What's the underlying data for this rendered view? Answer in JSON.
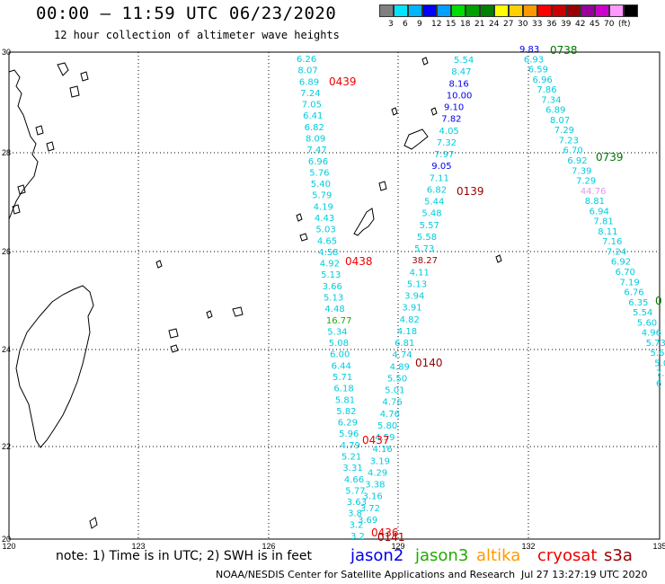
{
  "header": {
    "title": "00:00 – 11:59 UTC 06/23/2020",
    "subtitle": "12 hour collection of altimeter wave heights"
  },
  "colorbar": {
    "colors": [
      "#808080",
      "#00e5ff",
      "#00b4ff",
      "#0000ff",
      "#00a0ff",
      "#00dd00",
      "#00a000",
      "#008000",
      "#ffff00",
      "#ffd000",
      "#ff9900",
      "#ff0000",
      "#cc0000",
      "#990000",
      "#990099",
      "#cc00cc",
      "#ff99ff",
      "#000000"
    ],
    "labels": [
      "3",
      "6",
      "9",
      "12",
      "15",
      "18",
      "21",
      "24",
      "27",
      "30",
      "33",
      "36",
      "39",
      "42",
      "45",
      "70",
      "(ft)"
    ]
  },
  "map": {
    "lat_labels": [
      "30",
      "28",
      "26",
      "24",
      "22",
      "20"
    ],
    "lon_labels": [
      "120",
      "123",
      "126",
      "129",
      "132",
      "135"
    ]
  },
  "tracks": {
    "colors": {
      "cyan": "#00ccdd",
      "blue": "#0000ee",
      "green": "#22aa00",
      "red": "#ee0000",
      "darkred": "#990000",
      "darkgreen": "#007700",
      "pink": "#dd99ee"
    },
    "track_a": [
      "6.26",
      "8.07",
      "6.89",
      "7.24",
      "7.05",
      "6.41",
      "6.82",
      "8.09",
      "7.47",
      "6.96",
      "5.76",
      "5.40",
      "5.79",
      "4.19",
      "4.43",
      "5.03",
      "4.65",
      "4.58",
      "4.92",
      "5.13",
      "3.66",
      "5.13",
      "4.48",
      "16.77",
      "5.34",
      "5.08",
      "6.00",
      "6.44",
      "5.71",
      "6.18",
      "5.81",
      "5.82",
      "6.29",
      "5.96",
      "4.79",
      "5.21",
      "3.31",
      "4.66",
      "5.77",
      "3.63",
      "3.8",
      "3.2",
      "3.2"
    ],
    "track_b": [
      "5.54",
      "8.47",
      "8.16",
      "10.00",
      "9.10",
      "7.82",
      "4.05",
      "7.32",
      "7.97",
      "9.05",
      "7.11",
      "6.82",
      "5.44",
      "5.48",
      "5.57",
      "5.58",
      "5.73",
      "38.27",
      "4.11",
      "5.13",
      "3.94",
      "3.91",
      "4.82",
      "4.18",
      "6.81",
      "4.74",
      "4.89",
      "5.50",
      "5.01",
      "4.76",
      "4.76",
      "5.80",
      "4.59",
      "4.16",
      "3.19",
      "4.29",
      "3.38",
      "3.16",
      "3.72",
      "3.69"
    ],
    "track_c": [
      "9.83",
      "6.93",
      "6.59",
      "6.96",
      "7.86",
      "7.34",
      "6.89",
      "8.07",
      "7.29",
      "7.23",
      "6.70",
      "6.92",
      "7.39",
      "7.29",
      "44.76",
      "8.81",
      "6.94",
      "7.81",
      "8.11",
      "7.16",
      "7.24",
      "6.92",
      "6.70",
      "7.19",
      "6.76",
      "6.35",
      "5.54",
      "5.60",
      "4.96",
      "5.73",
      "5.64",
      "5.0",
      "7.6",
      "6"
    ],
    "time_labels": [
      "0439",
      "0438",
      "0437",
      "0139",
      "0140",
      "0738",
      "0739",
      "0",
      "0436",
      "0141"
    ]
  },
  "legend": {
    "note": "note: 1) Time is in UTC; 2) SWH is in feet",
    "satellites": [
      {
        "name": "jason2",
        "color": "#0000ee"
      },
      {
        "name": "jason3",
        "color": "#22aa00"
      },
      {
        "name": "altika",
        "color": "#ff9900"
      },
      {
        "name": "cryosat",
        "color": "#ee0000"
      },
      {
        "name": "s3a",
        "color": "#990000"
      }
    ]
  },
  "footer": {
    "credit": "NOAA/NESDIS Center for Satellite Applications and Research",
    "timestamp": "Jul 27 13:27:19 UTC 2020"
  }
}
